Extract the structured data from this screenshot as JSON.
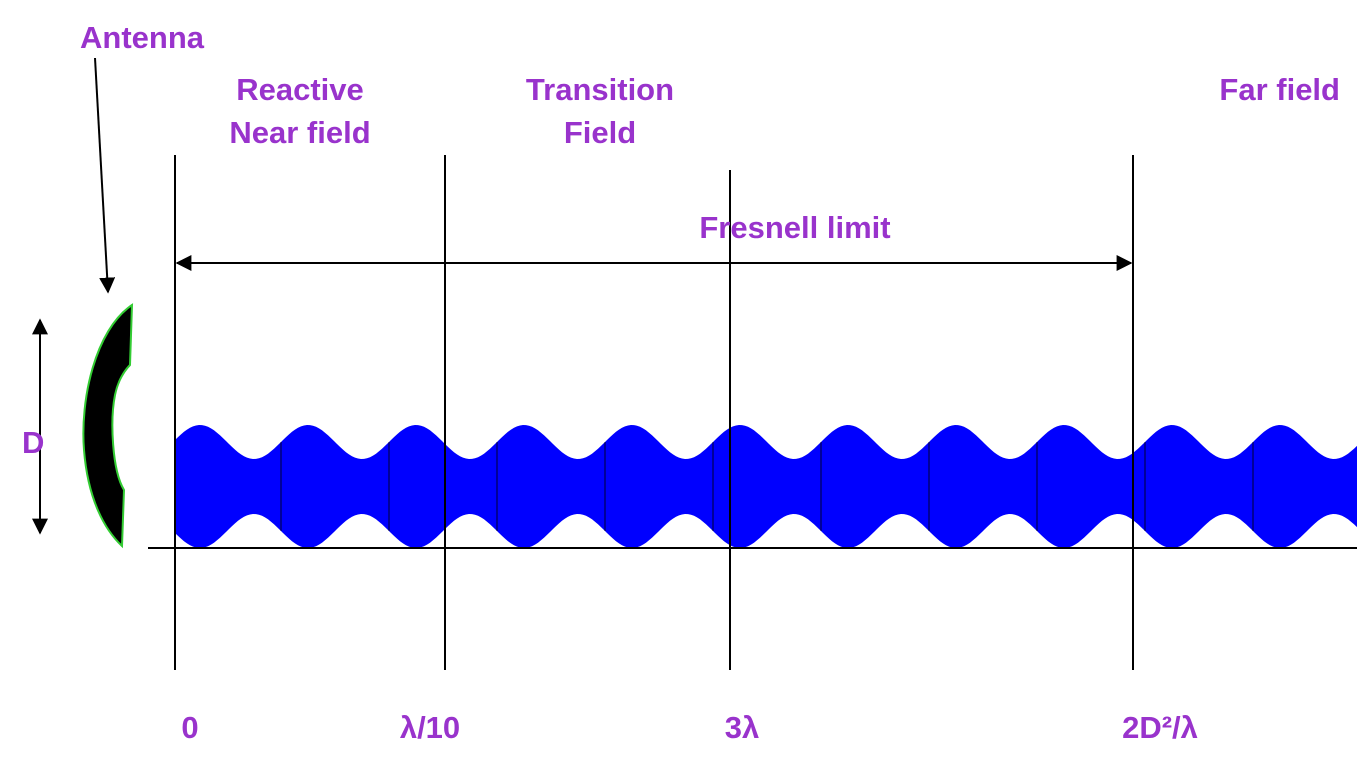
{
  "antenna_label": "Antenna",
  "regions": [
    {
      "lines": [
        "Reactive",
        "Near field"
      ]
    },
    {
      "lines": [
        "Transition",
        "Field"
      ]
    },
    {
      "lines": [
        "Far field"
      ]
    }
  ],
  "fresnel_label": "Fresnell limit",
  "dimension_label": "D",
  "distance_marks": [
    "0",
    "λ/10",
    "3λ",
    "2D²/λ"
  ]
}
